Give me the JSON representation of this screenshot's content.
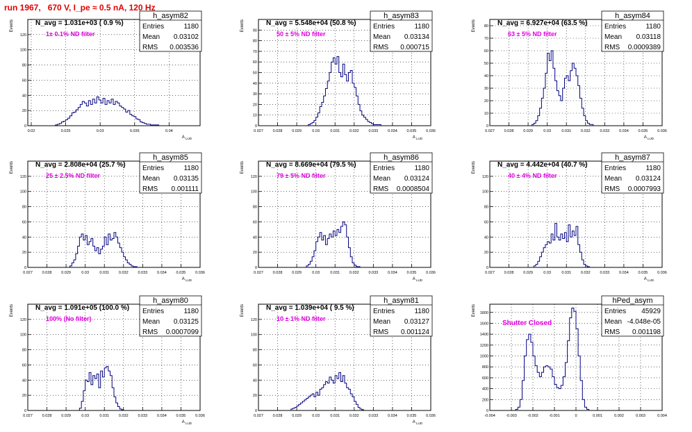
{
  "header": {
    "run_title": "run 1967,   670 V, I_pe ≈ 0.5 nA, 120 Hz"
  },
  "colors": {
    "title": "#e00000",
    "histogram_line": "#000080",
    "annotation": "#e000e0",
    "axis": "#000000",
    "grid": "#000000"
  },
  "chart_data": [
    {
      "type": "bar",
      "histogram": "h_asym82",
      "ylabel": "Events",
      "xlabel": "A_LUD",
      "n_avg": "N_avg = 1.031e+03 ( 0.9 %)",
      "filter_note": "1± 0.1% ND filter",
      "stats": {
        "Entries": "1180",
        "Mean": "0.03102",
        "RMS": "0.003536"
      },
      "xlim": [
        0.0195,
        0.0445
      ],
      "ylim": [
        0,
        140
      ],
      "xticks": [
        "0.02",
        "0.025",
        "0.03",
        "0.035",
        "0.04"
      ],
      "xtick_values": [
        0.02,
        0.025,
        0.03,
        0.035,
        0.04
      ],
      "yticks": [
        "0",
        "20",
        "40",
        "60",
        "80",
        "100",
        "120"
      ],
      "grid": true,
      "bins": {
        "start": 0.0235,
        "width": 0.0003,
        "values": [
          1,
          2,
          3,
          5,
          6,
          8,
          10,
          13,
          17,
          18,
          21,
          24,
          28,
          32,
          30,
          26,
          33,
          28,
          35,
          30,
          38,
          34,
          30,
          36,
          28,
          33,
          30,
          35,
          28,
          32,
          30,
          26,
          24,
          22,
          18,
          20,
          15,
          13,
          12,
          9,
          8,
          5,
          4,
          3,
          2,
          2,
          1,
          1,
          1,
          1
        ]
      }
    },
    {
      "type": "bar",
      "histogram": "h_asym83",
      "ylabel": "Events",
      "xlabel": "A_LUD",
      "n_avg": "N_avg = 5.548e+04 (50.8 %)",
      "filter_note": "50 ± 5% ND filter",
      "stats": {
        "Entries": "1180",
        "Mean": "0.03134",
        "RMS": "0.000715"
      },
      "xlim": [
        0.027,
        0.036
      ],
      "ylim": [
        0,
        100
      ],
      "xticks": [
        "0.027",
        "0.028",
        "0.029",
        "0.03",
        "0.031",
        "0.032",
        "0.033",
        "0.034",
        "0.035",
        "0.036"
      ],
      "xtick_values": [
        0.027,
        0.028,
        0.029,
        0.03,
        0.031,
        0.032,
        0.033,
        0.034,
        0.035,
        0.036
      ],
      "yticks": [
        "0",
        "10",
        "20",
        "30",
        "40",
        "50",
        "60",
        "70",
        "80",
        "90"
      ],
      "grid": true,
      "bins": {
        "start": 0.0296,
        "width": 0.0001,
        "values": [
          1,
          2,
          3,
          5,
          8,
          12,
          18,
          22,
          28,
          35,
          42,
          50,
          60,
          64,
          58,
          65,
          50,
          46,
          58,
          48,
          42,
          50,
          52,
          40,
          36,
          28,
          20,
          14,
          10,
          8,
          6,
          4,
          3,
          2,
          1,
          1,
          1,
          1
        ]
      }
    },
    {
      "type": "bar",
      "histogram": "h_asym84",
      "ylabel": "Events",
      "xlabel": "A_LUD",
      "n_avg": "N_avg = 6.927e+04 (63.5 %)",
      "filter_note": "63 ± 5% ND filter",
      "stats": {
        "Entries": "1180",
        "Mean": "0.03118",
        "RMS": "0.0009389"
      },
      "xlim": [
        0.027,
        0.036
      ],
      "ylim": [
        0,
        85
      ],
      "xticks": [
        "0.027",
        "0.028",
        "0.029",
        "0.03",
        "0.031",
        "0.032",
        "0.033",
        "0.034",
        "0.035",
        "0.036"
      ],
      "xtick_values": [
        0.027,
        0.028,
        0.029,
        0.03,
        0.031,
        0.032,
        0.033,
        0.034,
        0.035,
        0.036
      ],
      "yticks": [
        "0",
        "10",
        "20",
        "30",
        "40",
        "50",
        "60",
        "70",
        "80"
      ],
      "grid": true,
      "bins": {
        "start": 0.0292,
        "width": 0.0001,
        "values": [
          1,
          2,
          4,
          8,
          14,
          22,
          30,
          42,
          58,
          52,
          60,
          46,
          36,
          28,
          24,
          20,
          30,
          38,
          40,
          36,
          44,
          50,
          46,
          40,
          32,
          22,
          14,
          8,
          4,
          2,
          1,
          1
        ]
      }
    },
    {
      "type": "bar",
      "histogram": "h_asym85",
      "ylabel": "Events",
      "xlabel": "A_LUD",
      "n_avg": "N_avg = 2.808e+04 (25.7 %)",
      "filter_note": "25 ± 2.5% ND filter",
      "stats": {
        "Entries": "1180",
        "Mean": "0.03135",
        "RMS": "0.001111"
      },
      "xlim": [
        0.027,
        0.036
      ],
      "ylim": [
        0,
        140
      ],
      "xticks": [
        "0.027",
        "0.028",
        "0.029",
        "0.03",
        "0.031",
        "0.032",
        "0.033",
        "0.034",
        "0.035",
        "0.036"
      ],
      "xtick_values": [
        0.027,
        0.028,
        0.029,
        0.03,
        0.031,
        0.032,
        0.033,
        0.034,
        0.035,
        0.036
      ],
      "yticks": [
        "0",
        "20",
        "40",
        "60",
        "80",
        "100",
        "120"
      ],
      "grid": true,
      "bins": {
        "start": 0.0292,
        "width": 0.0001,
        "values": [
          2,
          6,
          10,
          18,
          28,
          40,
          44,
          36,
          42,
          30,
          34,
          38,
          28,
          22,
          26,
          18,
          24,
          28,
          40,
          30,
          44,
          36,
          38,
          46,
          40,
          32,
          26,
          20,
          14,
          10,
          6,
          4,
          2,
          1,
          1
        ]
      }
    },
    {
      "type": "bar",
      "histogram": "h_asym86",
      "ylabel": "Events",
      "xlabel": "A_LUD",
      "n_avg": "N_avg = 8.669e+04 (79.5 %)",
      "filter_note": "79 ± 5% ND filter",
      "stats": {
        "Entries": "1180",
        "Mean": "0.03124",
        "RMS": "0.0008504"
      },
      "xlim": [
        0.027,
        0.036
      ],
      "ylim": [
        0,
        140
      ],
      "xticks": [
        "0.027",
        "0.028",
        "0.029",
        "0.03",
        "0.031",
        "0.032",
        "0.033",
        "0.034",
        "0.035",
        "0.036"
      ],
      "xtick_values": [
        0.027,
        0.028,
        0.029,
        0.03,
        0.031,
        0.032,
        0.033,
        0.034,
        0.035,
        0.036
      ],
      "yticks": [
        "0",
        "20",
        "40",
        "60",
        "80",
        "100",
        "120"
      ],
      "grid": true,
      "bins": {
        "start": 0.0295,
        "width": 0.0001,
        "values": [
          2,
          4,
          8,
          14,
          22,
          34,
          40,
          46,
          36,
          42,
          30,
          38,
          44,
          40,
          48,
          42,
          50,
          46,
          54,
          60,
          56,
          40,
          26,
          14,
          6,
          3,
          1,
          1
        ]
      }
    },
    {
      "type": "bar",
      "histogram": "h_asym87",
      "ylabel": "Events",
      "xlabel": "A_LUD",
      "n_avg": "N_avg = 4.442e+04 (40.7 %)",
      "filter_note": "40 ± 4% ND filter",
      "stats": {
        "Entries": "1180",
        "Mean": "0.03124",
        "RMS": "0.0007993"
      },
      "xlim": [
        0.027,
        0.036
      ],
      "ylim": [
        0,
        140
      ],
      "xticks": [
        "0.027",
        "0.028",
        "0.029",
        "0.03",
        "0.031",
        "0.032",
        "0.033",
        "0.034",
        "0.035",
        "0.036"
      ],
      "xtick_values": [
        0.027,
        0.028,
        0.029,
        0.03,
        0.031,
        0.032,
        0.033,
        0.034,
        0.035,
        0.036
      ],
      "yticks": [
        "0",
        "20",
        "40",
        "60",
        "80",
        "100",
        "120"
      ],
      "grid": true,
      "bins": {
        "start": 0.0293,
        "width": 0.0001,
        "values": [
          2,
          4,
          8,
          14,
          20,
          26,
          30,
          34,
          32,
          44,
          36,
          58,
          40,
          36,
          44,
          38,
          46,
          34,
          56,
          40,
          48,
          42,
          54,
          30,
          20,
          10,
          4,
          2,
          1
        ]
      }
    },
    {
      "type": "bar",
      "histogram": "h_asym80",
      "ylabel": "Events",
      "xlabel": "A_LUD",
      "n_avg": "N_avg = 1.091e+05 (100.0 %)",
      "filter_note": "100% (No filter)",
      "stats": {
        "Entries": "1180",
        "Mean": "0.03125",
        "RMS": "0.0007099"
      },
      "xlim": [
        0.027,
        0.036
      ],
      "ylim": [
        0,
        140
      ],
      "xticks": [
        "0.027",
        "0.028",
        "0.029",
        "0.03",
        "0.031",
        "0.032",
        "0.033",
        "0.034",
        "0.035",
        "0.036"
      ],
      "xtick_values": [
        0.027,
        0.028,
        0.029,
        0.03,
        0.031,
        0.032,
        0.033,
        0.034,
        0.035,
        0.036
      ],
      "yticks": [
        "0",
        "20",
        "40",
        "60",
        "80",
        "100",
        "120"
      ],
      "grid": true,
      "bins": {
        "start": 0.0297,
        "width": 0.0001,
        "values": [
          3,
          12,
          26,
          40,
          38,
          50,
          34,
          46,
          42,
          48,
          30,
          52,
          44,
          56,
          58,
          52,
          46,
          30,
          18,
          10,
          5,
          2,
          1
        ]
      }
    },
    {
      "type": "bar",
      "histogram": "h_asym81",
      "ylabel": "Events",
      "xlabel": "A_LUD",
      "n_avg": "N_avg = 1.039e+04 ( 9.5 %)",
      "filter_note": "10 ± 1% ND filter",
      "stats": {
        "Entries": "1180",
        "Mean": "0.03127",
        "RMS": "0.001124"
      },
      "xlim": [
        0.027,
        0.036
      ],
      "ylim": [
        0,
        140
      ],
      "xticks": [
        "0.027",
        "0.028",
        "0.029",
        "0.03",
        "0.031",
        "0.032",
        "0.033",
        "0.034",
        "0.035",
        "0.036"
      ],
      "xtick_values": [
        0.027,
        0.028,
        0.029,
        0.03,
        0.031,
        0.032,
        0.033,
        0.034,
        0.035,
        0.036
      ],
      "yticks": [
        "0",
        "20",
        "40",
        "60",
        "80",
        "100",
        "120"
      ],
      "grid": true,
      "bins": {
        "start": 0.0287,
        "width": 0.0001,
        "values": [
          2,
          3,
          4,
          6,
          8,
          10,
          12,
          14,
          16,
          18,
          20,
          22,
          18,
          24,
          20,
          28,
          30,
          34,
          38,
          36,
          44,
          40,
          36,
          46,
          42,
          50,
          38,
          46,
          36,
          30,
          28,
          22,
          18,
          12,
          8,
          4,
          2,
          1
        ]
      }
    },
    {
      "type": "bar",
      "histogram": "hPed_asym",
      "ylabel": "Events",
      "xlabel": "",
      "n_avg": "",
      "filter_note": "Shutter Closed",
      "stats": {
        "Entries": "45929",
        "Mean": "-4.048e-05",
        "RMS": "0.001198"
      },
      "xlim": [
        -0.004,
        0.004
      ],
      "ylim": [
        0,
        1950
      ],
      "xticks": [
        "-0.004",
        "-0.003",
        "-0.002",
        "-0.001",
        "0",
        "0.001",
        "0.002",
        "0.003",
        "0.004"
      ],
      "xtick_values": [
        -0.004,
        -0.003,
        -0.002,
        -0.001,
        0,
        0.001,
        0.002,
        0.003,
        0.004
      ],
      "yticks": [
        "0",
        "200",
        "400",
        "600",
        "800",
        "1000",
        "1200",
        "1400",
        "1600",
        "1800"
      ],
      "grid": true,
      "bins": {
        "start": -0.0028,
        "width": 0.0001,
        "values": [
          20,
          60,
          200,
          550,
          1000,
          1300,
          1400,
          1250,
          1000,
          820,
          700,
          620,
          700,
          800,
          820,
          800,
          760,
          620,
          480,
          420,
          400,
          460,
          620,
          880,
          1280,
          1700,
          1880,
          1820,
          1500,
          1000,
          550,
          200,
          60,
          20
        ]
      }
    }
  ]
}
